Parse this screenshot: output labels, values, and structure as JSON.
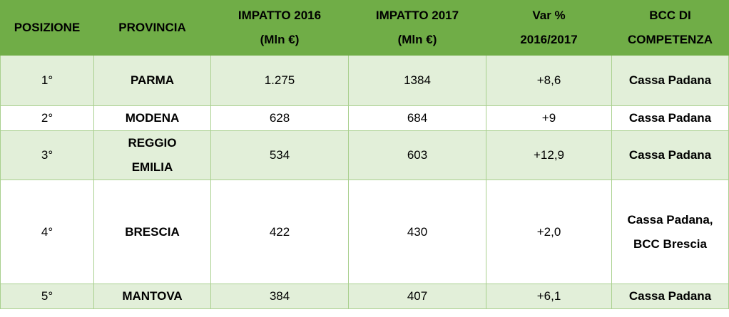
{
  "headers": [
    [
      "POSIZIONE"
    ],
    [
      "PROVINCIA"
    ],
    [
      "IMPATTO 2016",
      "(Mln €)"
    ],
    [
      "IMPATTO 2017",
      "(Mln €)"
    ],
    [
      "Var %",
      "2016/2017"
    ],
    [
      "BCC DI",
      "COMPETENZA"
    ]
  ],
  "rows": [
    {
      "posizione": "1°",
      "provincia": [
        "PARMA"
      ],
      "impatto2016": "1.275",
      "impatto2017": "1384",
      "var": "+8,6",
      "bcc": [
        "Cassa Padana"
      ]
    },
    {
      "posizione": "2°",
      "provincia": [
        "MODENA"
      ],
      "impatto2016": "628",
      "impatto2017": "684",
      "var": "+9",
      "bcc": [
        "Cassa Padana"
      ]
    },
    {
      "posizione": "3°",
      "provincia": [
        "REGGIO",
        "EMILIA"
      ],
      "impatto2016": "534",
      "impatto2017": "603",
      "var": "+12,9",
      "bcc": [
        "Cassa Padana"
      ]
    },
    {
      "posizione": "4°",
      "provincia": [
        "BRESCIA"
      ],
      "impatto2016": "422",
      "impatto2017": "430",
      "var": "+2,0",
      "bcc": [
        "Cassa Padana,",
        "BCC Brescia"
      ]
    },
    {
      "posizione": "5°",
      "provincia": [
        "MANTOVA"
      ],
      "impatto2016": "384",
      "impatto2017": "407",
      "var": "+6,1",
      "bcc": [
        "Cassa Padana"
      ]
    }
  ],
  "colors": {
    "header_bg": "#70ad47",
    "band_bg": "#e2efd9",
    "border": "#a9d08e"
  }
}
